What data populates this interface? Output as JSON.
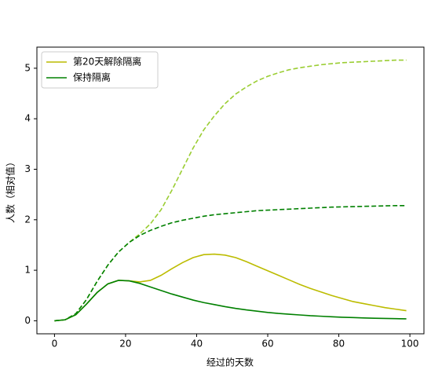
{
  "chart_data": {
    "type": "line",
    "x_label": "经过的天数",
    "y_label": "人数（相对值）",
    "x": [
      0,
      3,
      6,
      9,
      12,
      15,
      18,
      21,
      24,
      27,
      30,
      33,
      36,
      39,
      42,
      45,
      48,
      51,
      54,
      57,
      60,
      63,
      66,
      69,
      72,
      75,
      78,
      81,
      84,
      87,
      90,
      93,
      96,
      99
    ],
    "series": [
      {
        "name": "第20天解除隔离",
        "color": "#bcbc00",
        "style": "solid",
        "values": [
          0,
          0.02,
          0.12,
          0.33,
          0.56,
          0.73,
          0.8,
          0.79,
          0.77,
          0.8,
          0.9,
          1.03,
          1.15,
          1.25,
          1.31,
          1.32,
          1.3,
          1.25,
          1.17,
          1.08,
          0.99,
          0.9,
          0.81,
          0.72,
          0.64,
          0.57,
          0.5,
          0.44,
          0.38,
          0.34,
          0.3,
          0.26,
          0.23,
          0.2
        ]
      },
      {
        "name": "保持隔离",
        "color": "#008000",
        "style": "solid",
        "values": [
          0,
          0.02,
          0.12,
          0.33,
          0.56,
          0.73,
          0.8,
          0.79,
          0.74,
          0.67,
          0.6,
          0.53,
          0.47,
          0.41,
          0.36,
          0.32,
          0.28,
          0.245,
          0.215,
          0.19,
          0.165,
          0.145,
          0.13,
          0.115,
          0.1,
          0.09,
          0.08,
          0.07,
          0.063,
          0.056,
          0.05,
          0.046,
          0.042,
          0.038
        ]
      },
      {
        "color": "#9acd32",
        "style": "dashed",
        "values": [
          0,
          0.02,
          0.14,
          0.42,
          0.78,
          1.1,
          1.36,
          1.55,
          1.72,
          1.92,
          2.2,
          2.58,
          3.0,
          3.42,
          3.78,
          4.06,
          4.3,
          4.49,
          4.63,
          4.75,
          4.84,
          4.91,
          4.97,
          5.01,
          5.04,
          5.07,
          5.09,
          5.11,
          5.12,
          5.13,
          5.14,
          5.15,
          5.16,
          5.16
        ]
      },
      {
        "color": "#008000",
        "style": "dashed",
        "values": [
          0,
          0.02,
          0.14,
          0.42,
          0.78,
          1.1,
          1.36,
          1.55,
          1.69,
          1.79,
          1.87,
          1.94,
          1.99,
          2.03,
          2.07,
          2.1,
          2.12,
          2.14,
          2.16,
          2.18,
          2.19,
          2.2,
          2.21,
          2.22,
          2.23,
          2.24,
          2.25,
          2.255,
          2.26,
          2.265,
          2.27,
          2.275,
          2.28,
          2.28
        ]
      }
    ],
    "xlim": [
      -4.95,
      103.95
    ],
    "xticks": [
      0,
      20,
      40,
      60,
      80,
      100
    ],
    "ylim": [
      -0.258,
      5.418
    ],
    "yticks": [
      0,
      1,
      2,
      3,
      4,
      5
    ],
    "legend": "upper left"
  }
}
